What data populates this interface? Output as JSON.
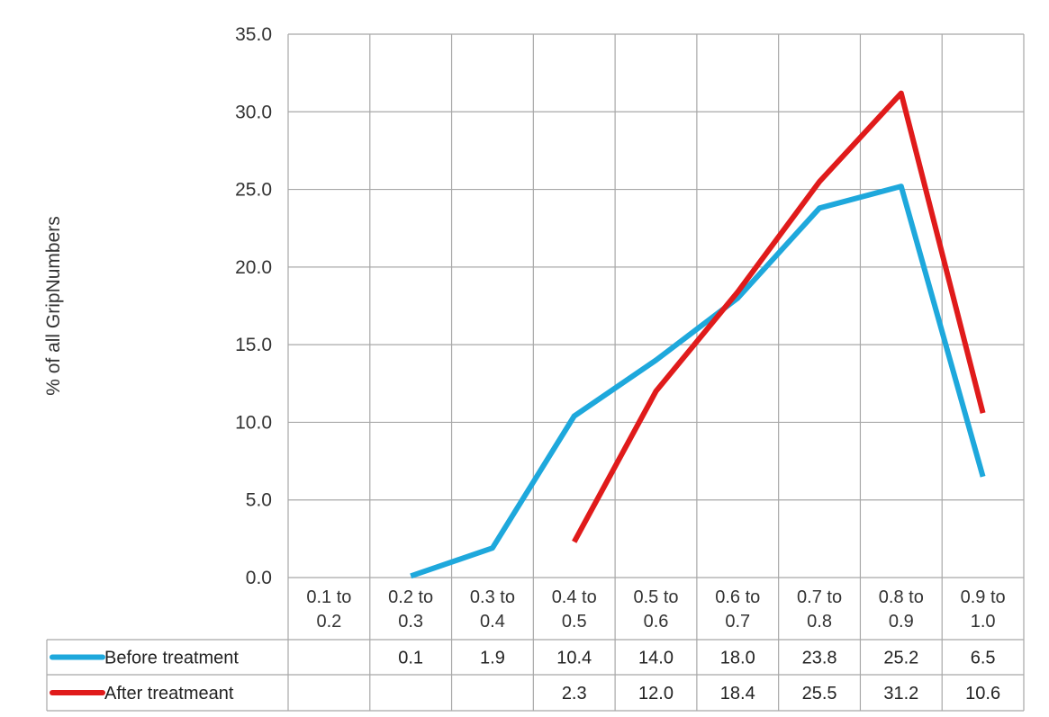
{
  "chart_data": {
    "type": "line",
    "ylabel": "% of all GripNumbers",
    "ylim": [
      0,
      35
    ],
    "y_ticks": [
      "35.0",
      "30.0",
      "25.0",
      "20.0",
      "15.0",
      "10.0",
      "5.0",
      "0.0"
    ],
    "categories": [
      [
        "0.1 to",
        "0.2"
      ],
      [
        "0.2 to",
        "0.3"
      ],
      [
        "0.3 to",
        "0.4"
      ],
      [
        "0.4 to",
        "0.5"
      ],
      [
        "0.5 to",
        "0.6"
      ],
      [
        "0.6 to",
        "0.7"
      ],
      [
        "0.7 to",
        "0.8"
      ],
      [
        "0.8 to",
        "0.9"
      ],
      [
        "0.9 to",
        "1.0"
      ]
    ],
    "grid": true,
    "legend": "data-table-left",
    "series": [
      {
        "name": "Before treatment",
        "color": "#1ea8dc",
        "values": [
          null,
          0.1,
          1.9,
          10.4,
          14.0,
          18.0,
          23.8,
          25.2,
          6.5
        ],
        "labels": [
          "",
          "0.1",
          "1.9",
          "10.4",
          "14.0",
          "18.0",
          "23.8",
          "25.2",
          "6.5"
        ]
      },
      {
        "name": "After treatmeant",
        "color": "#e01b1b",
        "values": [
          null,
          null,
          null,
          2.3,
          12.0,
          18.4,
          25.5,
          31.2,
          10.6
        ],
        "labels": [
          "",
          "",
          "",
          "2.3",
          "12.0",
          "18.4",
          "25.5",
          "31.2",
          "10.6"
        ]
      }
    ]
  }
}
